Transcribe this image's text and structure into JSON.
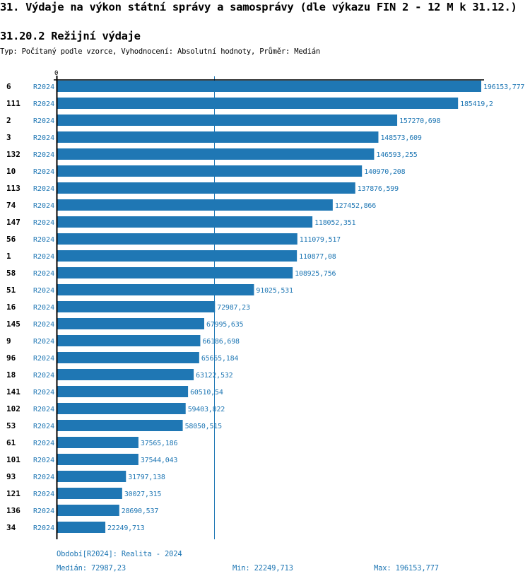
{
  "header": {
    "title": "31. Výdaje na výkon státní správy a samosprávy (dle výkazu FIN 2 - 12 M k 31.12.)",
    "subtitle": "31.20.2 Režijní výdaje",
    "meta": "Typ: Počítaný podle vzorce, Vyhodnocení: Absolutní hodnoty, Průměr: Medián"
  },
  "chart_data": {
    "type": "bar",
    "orientation": "horizontal",
    "title": "31.20.2 Režijní výdaje",
    "xlabel": "",
    "ylabel": "",
    "x_tick_labels": [
      "0"
    ],
    "xlim": [
      0,
      196153.777
    ],
    "series_label": "R2024",
    "categories": [
      "6",
      "111",
      "2",
      "3",
      "132",
      "10",
      "113",
      "74",
      "147",
      "56",
      "1",
      "58",
      "51",
      "16",
      "145",
      "9",
      "96",
      "18",
      "141",
      "102",
      "53",
      "61",
      "101",
      "93",
      "121",
      "136",
      "34"
    ],
    "values": [
      196153.777,
      185419.2,
      157270.698,
      148573.609,
      146593.255,
      140970.208,
      137876.599,
      127452.866,
      118052.351,
      111079.517,
      110877.08,
      108925.756,
      91025.531,
      72987.23,
      67995.635,
      66186.698,
      65665.184,
      63122.532,
      60510.54,
      59403.822,
      58050.515,
      37565.186,
      37544.043,
      31797.138,
      30027.315,
      28690.537,
      22249.713
    ],
    "value_labels": [
      "196153,777",
      "185419,2",
      "157270,698",
      "148573,609",
      "146593,255",
      "140970,208",
      "137876,599",
      "127452,866",
      "118052,351",
      "111079,517",
      "110877,08",
      "108925,756",
      "91025,531",
      "72987,23",
      "67995,635",
      "66186,698",
      "65665,184",
      "63122,532",
      "60510,54",
      "59403,822",
      "58050,515",
      "37565,186",
      "37544,043",
      "31797,138",
      "30027,315",
      "28690,537",
      "22249,713"
    ],
    "reference_line": {
      "name": "Medián",
      "value": 72987.23
    },
    "grid": false,
    "colors": {
      "bar": "#1f77b4",
      "label": "#1f77b4",
      "axis": "#000000"
    }
  },
  "footer": {
    "period": "Období[R2024]: Realita - 2024",
    "median": "Medián: 72987,23",
    "min": "Min: 22249,713",
    "max": "Max: 196153,777"
  }
}
